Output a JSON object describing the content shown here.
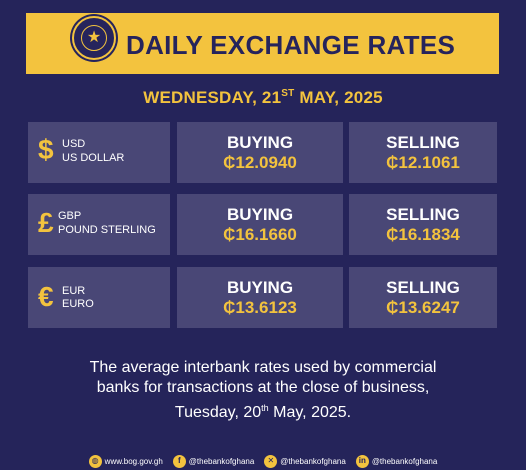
{
  "header": {
    "title": "DAILY EXCHANGE RATES",
    "seal_icon": "bank-of-ghana-seal-icon"
  },
  "date": {
    "prefix": "WEDNESDAY, 21",
    "ordinal": "ST",
    "suffix": " MAY, 2025"
  },
  "rates": [
    {
      "symbol": "$",
      "code": "USD",
      "name": "US DOLLAR",
      "buying_label": "BUYING",
      "buying": "₵12.0940",
      "selling_label": "SELLING",
      "selling": "₵12.1061"
    },
    {
      "symbol": "£",
      "code": "GBP",
      "name": "POUND STERLING",
      "buying_label": "BUYING",
      "buying": "₵16.1660",
      "selling_label": "SELLING",
      "selling": "₵16.1834"
    },
    {
      "symbol": "€",
      "code": "EUR",
      "name": "EURO",
      "buying_label": "BUYING",
      "buying": "₵13.6123",
      "selling_label": "SELLING",
      "selling": "₵13.6247"
    }
  ],
  "footnote": {
    "line1": "The average interbank rates used by commercial",
    "line2": "banks for transactions at the close of business,",
    "line3_prefix": "Tuesday, 20",
    "line3_ordinal": "th",
    "line3_suffix": " May, 2025."
  },
  "footer": {
    "website": "www.bog.gov.gh",
    "facebook": "@thebankofghana",
    "x": "@thebankofghana",
    "linkedin": "@thebankofghana"
  },
  "colors": {
    "background": "#25245a",
    "accent": "#f3c33e",
    "cell": "#494776"
  }
}
